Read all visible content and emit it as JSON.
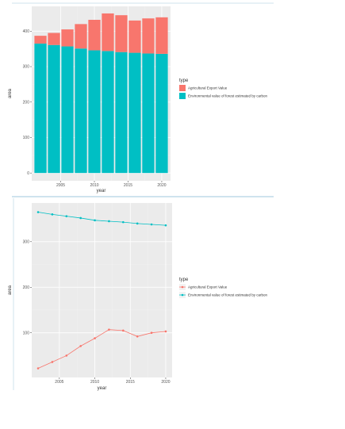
{
  "colors": {
    "agri": "#F8766D",
    "env": "#00BFC4",
    "panel": "#EBEBEB",
    "grid_major": "#FFFFFF",
    "grid_minor": "#F2F2F2",
    "separator": "#CFE3EE"
  },
  "chart_data": [
    {
      "type": "bar",
      "stacked": true,
      "xlabel": "year",
      "ylabel": "area",
      "x": [
        2002,
        2004,
        2006,
        2008,
        2010,
        2012,
        2014,
        2016,
        2018,
        2020
      ],
      "xticks": [
        2005,
        2010,
        2015,
        2020
      ],
      "yticks": [
        0,
        100,
        200,
        300,
        400
      ],
      "xlim": [
        2000.7,
        2021.3
      ],
      "ylim": [
        -22,
        470
      ],
      "grid": true,
      "legend": {
        "title": "type",
        "placement": "right",
        "entries": [
          "Agricultural Export Value",
          "Environmental value of forest estimated by carbon"
        ]
      },
      "series": [
        {
          "name": "Environmental value of forest estimated by carbon",
          "color_key": "env",
          "values": [
            365,
            361,
            357,
            351,
            346,
            344,
            341,
            339,
            337,
            336
          ]
        },
        {
          "name": "Agricultural Export Value",
          "color_key": "agri",
          "values": [
            22,
            34,
            48,
            69,
            86,
            106,
            104,
            91,
            99,
            103
          ]
        }
      ]
    },
    {
      "type": "line",
      "xlabel": "year",
      "ylabel": "area",
      "x": [
        2002,
        2004,
        2006,
        2008,
        2010,
        2012,
        2014,
        2016,
        2018,
        2020
      ],
      "xticks": [
        2005,
        2010,
        2015,
        2020
      ],
      "yticks": [
        100,
        200,
        300
      ],
      "xlim": [
        2001.1,
        2020.9
      ],
      "ylim": [
        2,
        385
      ],
      "grid": true,
      "legend": {
        "title": "type",
        "placement": "right",
        "entries": [
          "Agricultural Export Value",
          "Environmental value of forest estimated by carbon"
        ]
      },
      "series": [
        {
          "name": "Agricultural Export Value",
          "color_key": "agri",
          "values": [
            22,
            36,
            50,
            71,
            88,
            107,
            105,
            92,
            100,
            103
          ]
        },
        {
          "name": "Environmental value of forest estimated by carbon",
          "color_key": "env",
          "values": [
            365,
            360,
            356,
            352,
            347,
            345,
            343,
            340,
            338,
            336
          ]
        }
      ]
    }
  ]
}
